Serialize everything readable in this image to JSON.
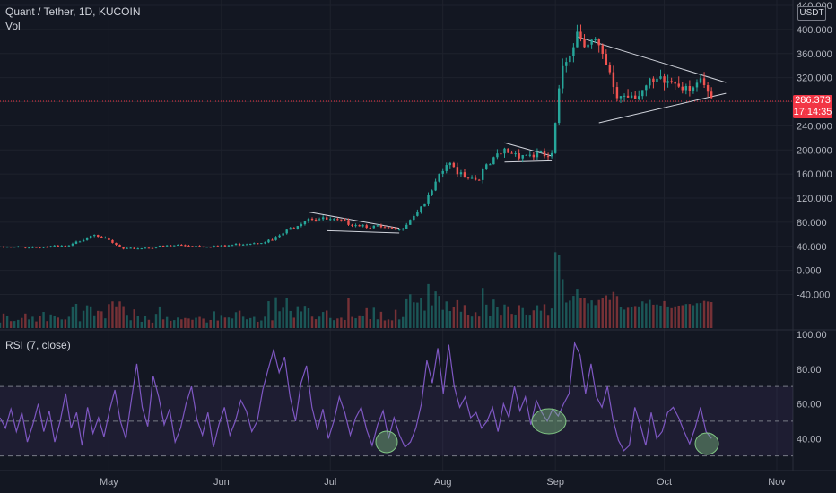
{
  "header": {
    "title": "Quant / Tether, 1D, KUCOIN",
    "volume_label": "Vol",
    "currency": "USDT"
  },
  "indicator": {
    "label": "RSI (7, close)"
  },
  "price_tag": {
    "price": "286.373",
    "countdown": "17:14:35",
    "color": "#f23645"
  },
  "colors": {
    "background": "#131722",
    "up": "#26a69a",
    "down": "#ef5350",
    "rsi_line": "#7e57c2",
    "grid": "#1e222d",
    "text": "#b2b5be"
  },
  "chart_data": [
    {
      "type": "candlestick",
      "title": "Quant / Tether, 1D, KUCOIN",
      "ylim": [
        -60,
        440
      ],
      "y_ticks": [
        "440.000",
        "400.000",
        "360.000",
        "320.000",
        "280.000",
        "240.000",
        "200.000",
        "160.000",
        "120.000",
        "80.000",
        "40.000",
        "0.000",
        "-40.000"
      ],
      "x_ticks": [
        "May",
        "Jun",
        "Jul",
        "Aug",
        "Sep",
        "Oct",
        "Nov"
      ],
      "last_price": 286.373,
      "grid": true,
      "patterns": [
        "descending triangle (late Jun – mid Jul)",
        "descending triangle (mid Aug – end Aug)",
        "symmetrical triangle (mid Sep – mid Oct)"
      ],
      "close_trend": [
        {
          "date": "2021-04-01",
          "close": 38
        },
        {
          "date": "2021-04-20",
          "close": 40
        },
        {
          "date": "2021-04-27",
          "close": 62
        },
        {
          "date": "2021-05-05",
          "close": 35
        },
        {
          "date": "2021-05-20",
          "close": 42
        },
        {
          "date": "2021-06-01",
          "close": 40
        },
        {
          "date": "2021-06-15",
          "close": 50
        },
        {
          "date": "2021-06-25",
          "close": 88
        },
        {
          "date": "2021-07-05",
          "close": 80
        },
        {
          "date": "2021-07-20",
          "close": 66
        },
        {
          "date": "2021-07-28",
          "close": 120
        },
        {
          "date": "2021-08-02",
          "close": 175
        },
        {
          "date": "2021-08-10",
          "close": 152
        },
        {
          "date": "2021-08-18",
          "close": 198
        },
        {
          "date": "2021-08-31",
          "close": 188
        },
        {
          "date": "2021-09-03",
          "close": 340
        },
        {
          "date": "2021-09-07",
          "close": 398
        },
        {
          "date": "2021-09-12",
          "close": 375
        },
        {
          "date": "2021-09-18",
          "close": 290
        },
        {
          "date": "2021-09-25",
          "close": 300
        },
        {
          "date": "2021-10-03",
          "close": 315
        },
        {
          "date": "2021-10-10",
          "close": 310
        },
        {
          "date": "2021-10-14",
          "close": 286.373
        }
      ]
    },
    {
      "type": "line",
      "title": "RSI (7, close)",
      "ylim": [
        20,
        100
      ],
      "y_ticks": [
        "100.00",
        "80.00",
        "60.00",
        "40.00"
      ],
      "bands": [
        70,
        50,
        30
      ],
      "series": [
        {
          "values": [
            52,
            46,
            57,
            44,
            55,
            38,
            48,
            60,
            44,
            56,
            38,
            50,
            66,
            46,
            55,
            36,
            58,
            43,
            52,
            41,
            56,
            68,
            50,
            40,
            62,
            83,
            58,
            47,
            76,
            64,
            48,
            57,
            38,
            46,
            60,
            70,
            51,
            42,
            55,
            35,
            48,
            58,
            42,
            50,
            62,
            56,
            44,
            50,
            68,
            80,
            91,
            78,
            87,
            64,
            50,
            72,
            82,
            58,
            45,
            57,
            40,
            50,
            64,
            55,
            42,
            52,
            58,
            45,
            36,
            48,
            56,
            40,
            52,
            42,
            35,
            38,
            46,
            60,
            85,
            72,
            92,
            66,
            94,
            70,
            58,
            64,
            52,
            55,
            46,
            50,
            58,
            44,
            60,
            52,
            70,
            56,
            64,
            48,
            62,
            55,
            50,
            57,
            53,
            60,
            66,
            95,
            88,
            66,
            83,
            64,
            58,
            70,
            51,
            39,
            33,
            36,
            58,
            48,
            36,
            55,
            40,
            44,
            55,
            58,
            52,
            44,
            37,
            46,
            58,
            44,
            40
          ]
        }
      ]
    }
  ]
}
